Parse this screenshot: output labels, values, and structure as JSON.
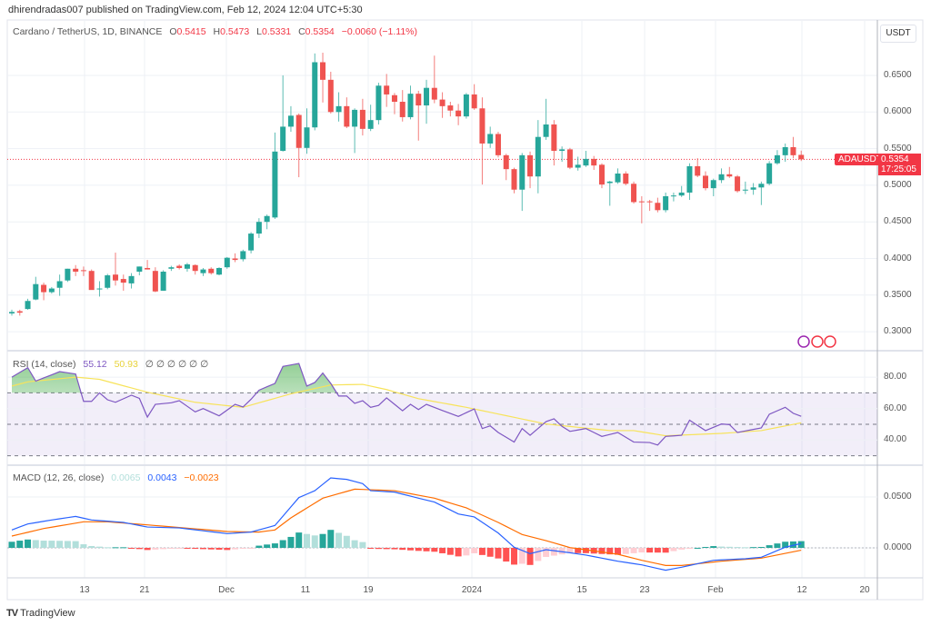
{
  "publisher": "dhirendradas007 published on TradingView.com, Feb 12, 2024 12:04 UTC+5:30",
  "symbol": "Cardano / TetherUS, 1D, BINANCE",
  "ohlc": {
    "o": "0.5415",
    "h": "0.5473",
    "l": "0.5331",
    "c": "0.5354",
    "chg": "−0.0060 (−1.11%)",
    "o_lbl": "O",
    "h_lbl": "H",
    "l_lbl": "L",
    "c_lbl": "C"
  },
  "currency": "USDT",
  "symbol_tag": "ADAUSDT",
  "last_price": "0.5354",
  "countdown": "17:25:05",
  "rsi_legend": {
    "name": "RSI (14, close)",
    "rsi": "55.12",
    "ma": "50.93",
    "extras": "∅ ∅ ∅ ∅ ∅ ∅"
  },
  "macd_legend": {
    "name": "MACD (12, 26, close)",
    "hist": "0.0065",
    "macd": "0.0043",
    "signal": "−0.0023"
  },
  "brand": "TradingView",
  "colors": {
    "up": "#26a69a",
    "down": "#ef5350",
    "rsi": "#7e57c2",
    "rsi_ma": "#f7e35a",
    "macd": "#2962ff",
    "signal": "#ff6d00"
  },
  "chart_data": [
    {
      "type": "candlestick",
      "title": "Cardano / TetherUS, 1D, BINANCE",
      "ylim": [
        0.28,
        0.7
      ],
      "y_ticks": [
        "0.6500",
        "0.6000",
        "0.5500",
        "0.5000",
        "0.4500",
        "0.4000",
        "0.3500",
        "0.3000"
      ],
      "x_ticks": [
        "13",
        "21",
        "Dec",
        "11",
        "19",
        "2024",
        "15",
        "23",
        "Feb",
        "12",
        "20"
      ],
      "ohlc": [
        [
          0.325,
          0.33,
          0.322,
          0.327
        ],
        [
          0.328,
          0.33,
          0.322,
          0.326
        ],
        [
          0.331,
          0.345,
          0.33,
          0.342
        ],
        [
          0.344,
          0.375,
          0.343,
          0.365
        ],
        [
          0.364,
          0.367,
          0.343,
          0.354
        ],
        [
          0.354,
          0.361,
          0.352,
          0.359
        ],
        [
          0.36,
          0.378,
          0.349,
          0.369
        ],
        [
          0.37,
          0.386,
          0.368,
          0.386
        ],
        [
          0.386,
          0.391,
          0.376,
          0.382
        ],
        [
          0.384,
          0.389,
          0.376,
          0.383
        ],
        [
          0.383,
          0.385,
          0.358,
          0.357
        ],
        [
          0.358,
          0.369,
          0.348,
          0.359
        ],
        [
          0.36,
          0.379,
          0.358,
          0.377
        ],
        [
          0.378,
          0.408,
          0.363,
          0.37
        ],
        [
          0.372,
          0.378,
          0.356,
          0.367
        ],
        [
          0.366,
          0.38,
          0.359,
          0.376
        ],
        [
          0.382,
          0.389,
          0.377,
          0.389
        ],
        [
          0.387,
          0.398,
          0.385,
          0.385
        ],
        [
          0.383,
          0.388,
          0.354,
          0.355
        ],
        [
          0.356,
          0.384,
          0.356,
          0.382
        ],
        [
          0.386,
          0.39,
          0.383,
          0.388
        ],
        [
          0.39,
          0.392,
          0.385,
          0.387
        ],
        [
          0.386,
          0.394,
          0.382,
          0.392
        ],
        [
          0.391,
          0.392,
          0.378,
          0.383
        ],
        [
          0.38,
          0.387,
          0.376,
          0.385
        ],
        [
          0.386,
          0.388,
          0.378,
          0.38
        ],
        [
          0.378,
          0.388,
          0.377,
          0.387
        ],
        [
          0.388,
          0.402,
          0.386,
          0.401
        ],
        [
          0.4,
          0.407,
          0.395,
          0.398
        ],
        [
          0.399,
          0.412,
          0.396,
          0.41
        ],
        [
          0.411,
          0.436,
          0.407,
          0.434
        ],
        [
          0.434,
          0.455,
          0.428,
          0.45
        ],
        [
          0.45,
          0.46,
          0.44,
          0.458
        ],
        [
          0.456,
          0.572,
          0.454,
          0.546
        ],
        [
          0.547,
          0.65,
          0.546,
          0.58
        ],
        [
          0.58,
          0.608,
          0.573,
          0.595
        ],
        [
          0.596,
          0.598,
          0.511,
          0.551
        ],
        [
          0.551,
          0.605,
          0.543,
          0.579
        ],
        [
          0.579,
          0.68,
          0.575,
          0.668
        ],
        [
          0.668,
          0.681,
          0.613,
          0.644
        ],
        [
          0.644,
          0.655,
          0.598,
          0.6
        ],
        [
          0.6,
          0.627,
          0.587,
          0.608
        ],
        [
          0.608,
          0.62,
          0.578,
          0.58
        ],
        [
          0.58,
          0.605,
          0.544,
          0.603
        ],
        [
          0.603,
          0.618,
          0.568,
          0.577
        ],
        [
          0.577,
          0.61,
          0.574,
          0.589
        ],
        [
          0.589,
          0.64,
          0.583,
          0.636
        ],
        [
          0.636,
          0.652,
          0.607,
          0.624
        ],
        [
          0.623,
          0.626,
          0.597,
          0.614
        ],
        [
          0.614,
          0.63,
          0.587,
          0.593
        ],
        [
          0.593,
          0.636,
          0.59,
          0.625
        ],
        [
          0.625,
          0.629,
          0.561,
          0.609
        ],
        [
          0.609,
          0.644,
          0.584,
          0.633
        ],
        [
          0.633,
          0.677,
          0.612,
          0.617
        ],
        [
          0.617,
          0.627,
          0.592,
          0.608
        ],
        [
          0.609,
          0.614,
          0.594,
          0.602
        ],
        [
          0.602,
          0.611,
          0.582,
          0.594
        ],
        [
          0.594,
          0.626,
          0.591,
          0.624
        ],
        [
          0.624,
          0.638,
          0.603,
          0.605
        ],
        [
          0.605,
          0.62,
          0.501,
          0.557
        ],
        [
          0.557,
          0.58,
          0.551,
          0.57
        ],
        [
          0.57,
          0.573,
          0.538,
          0.541
        ],
        [
          0.541,
          0.543,
          0.507,
          0.522
        ],
        [
          0.522,
          0.524,
          0.489,
          0.494
        ],
        [
          0.494,
          0.544,
          0.465,
          0.541
        ],
        [
          0.541,
          0.546,
          0.496,
          0.512
        ],
        [
          0.512,
          0.589,
          0.489,
          0.566
        ],
        [
          0.566,
          0.618,
          0.562,
          0.583
        ],
        [
          0.583,
          0.589,
          0.527,
          0.547
        ],
        [
          0.547,
          0.553,
          0.532,
          0.549
        ],
        [
          0.549,
          0.551,
          0.522,
          0.524
        ],
        [
          0.524,
          0.539,
          0.52,
          0.528
        ],
        [
          0.527,
          0.547,
          0.525,
          0.536
        ],
        [
          0.536,
          0.54,
          0.521,
          0.527
        ],
        [
          0.528,
          0.53,
          0.496,
          0.501
        ],
        [
          0.503,
          0.506,
          0.472,
          0.505
        ],
        [
          0.504,
          0.523,
          0.502,
          0.516
        ],
        [
          0.516,
          0.519,
          0.5,
          0.502
        ],
        [
          0.502,
          0.505,
          0.475,
          0.477
        ],
        [
          0.478,
          0.485,
          0.448,
          0.477
        ],
        [
          0.478,
          0.48,
          0.465,
          0.477
        ],
        [
          0.476,
          0.483,
          0.463,
          0.466
        ],
        [
          0.466,
          0.49,
          0.463,
          0.485
        ],
        [
          0.485,
          0.49,
          0.478,
          0.486
        ],
        [
          0.486,
          0.499,
          0.484,
          0.49
        ],
        [
          0.49,
          0.53,
          0.48,
          0.526
        ],
        [
          0.526,
          0.537,
          0.511,
          0.513
        ],
        [
          0.513,
          0.519,
          0.493,
          0.496
        ],
        [
          0.496,
          0.509,
          0.485,
          0.507
        ],
        [
          0.507,
          0.523,
          0.503,
          0.515
        ],
        [
          0.515,
          0.525,
          0.51,
          0.512
        ],
        [
          0.512,
          0.514,
          0.49,
          0.492
        ],
        [
          0.493,
          0.505,
          0.488,
          0.494
        ],
        [
          0.494,
          0.503,
          0.487,
          0.497
        ],
        [
          0.497,
          0.505,
          0.473,
          0.502
        ],
        [
          0.502,
          0.533,
          0.5,
          0.53
        ],
        [
          0.53,
          0.548,
          0.528,
          0.541
        ],
        [
          0.541,
          0.557,
          0.532,
          0.552
        ],
        [
          0.552,
          0.566,
          0.537,
          0.541
        ],
        [
          0.5415,
          0.5473,
          0.5331,
          0.5354
        ]
      ]
    },
    {
      "type": "line",
      "title": "RSI (14, close)",
      "ylim": [
        23,
        92
      ],
      "y_ticks": [
        "80.00",
        "60.00",
        "40.00"
      ],
      "bands": {
        "upper": 70,
        "middle": 50,
        "lower": 30
      },
      "rsi": [
        [
          0,
          80
        ],
        [
          2,
          86
        ],
        [
          3,
          77.5
        ],
        [
          6,
          83.5
        ],
        [
          8,
          82
        ],
        [
          9,
          64.6
        ],
        [
          10,
          64.6
        ],
        [
          11,
          70
        ],
        [
          12,
          65.6
        ],
        [
          13,
          64
        ],
        [
          15,
          68.5
        ],
        [
          16,
          66.5
        ],
        [
          17,
          54.6
        ],
        [
          18,
          62.7
        ],
        [
          20,
          63.7
        ],
        [
          21,
          65
        ],
        [
          23,
          57.9
        ],
        [
          24,
          60
        ],
        [
          26,
          55.4
        ],
        [
          28,
          62.7
        ],
        [
          29,
          61
        ],
        [
          30,
          65.9
        ],
        [
          31,
          71.7
        ],
        [
          33,
          76
        ],
        [
          34,
          86.8
        ],
        [
          36,
          88.7
        ],
        [
          37,
          74.3
        ],
        [
          38,
          76.6
        ],
        [
          39,
          82.6
        ],
        [
          40,
          76
        ],
        [
          41,
          68
        ],
        [
          42,
          68
        ],
        [
          43,
          63.3
        ],
        [
          44,
          65
        ],
        [
          45,
          60.8
        ],
        [
          46,
          62
        ],
        [
          47,
          66.8
        ],
        [
          49,
          58.6
        ],
        [
          50,
          62.7
        ],
        [
          51,
          59.4
        ],
        [
          52,
          62.7
        ],
        [
          54,
          58.8
        ],
        [
          56,
          55
        ],
        [
          58,
          59.8
        ],
        [
          59,
          47.3
        ],
        [
          60,
          49
        ],
        [
          61,
          44.8
        ],
        [
          63,
          38.7
        ],
        [
          64,
          47.3
        ],
        [
          65,
          43
        ],
        [
          67,
          51.7
        ],
        [
          68,
          53.5
        ],
        [
          69,
          48.7
        ],
        [
          70,
          45.5
        ],
        [
          72,
          47.3
        ],
        [
          74,
          42.3
        ],
        [
          76,
          44.8
        ],
        [
          78,
          38.7
        ],
        [
          80,
          38.4
        ],
        [
          81,
          36.8
        ],
        [
          82,
          42.3
        ],
        [
          84,
          43
        ],
        [
          85,
          52.6
        ],
        [
          87,
          46
        ],
        [
          89,
          50.2
        ],
        [
          90,
          49.8
        ],
        [
          91,
          44.8
        ],
        [
          94,
          47.7
        ],
        [
          95,
          56.4
        ],
        [
          97,
          60.8
        ],
        [
          98,
          57
        ],
        [
          99,
          55.12
        ]
      ],
      "rsi_ma": [
        [
          0,
          74.3
        ],
        [
          2,
          77
        ],
        [
          8,
          80
        ],
        [
          11,
          78.6
        ],
        [
          17,
          70.4
        ],
        [
          23,
          64
        ],
        [
          29,
          60.8
        ],
        [
          35,
          69.4
        ],
        [
          40,
          75
        ],
        [
          44,
          75.4
        ],
        [
          47,
          72.1
        ],
        [
          51,
          66.3
        ],
        [
          57,
          60.8
        ],
        [
          67,
          50.2
        ],
        [
          75,
          46
        ],
        [
          78,
          46
        ],
        [
          82,
          42.7
        ],
        [
          89,
          44.2
        ],
        [
          94,
          46
        ],
        [
          99,
          50.93
        ]
      ]
    },
    {
      "type": "line",
      "title": "MACD (12, 26, close)",
      "ylim": [
        -0.035,
        0.08
      ],
      "y_ticks": [
        "0.0500",
        "0.0000"
      ],
      "macd": [
        [
          0,
          0.0176
        ],
        [
          2,
          0.0235
        ],
        [
          5,
          0.0274
        ],
        [
          8,
          0.0309
        ],
        [
          10,
          0.0274
        ],
        [
          14,
          0.025
        ],
        [
          17,
          0.0205
        ],
        [
          21,
          0.0196
        ],
        [
          27,
          0.014
        ],
        [
          30,
          0.0155
        ],
        [
          33,
          0.022
        ],
        [
          36,
          0.0494
        ],
        [
          38,
          0.0562
        ],
        [
          40,
          0.0687
        ],
        [
          42,
          0.0673
        ],
        [
          44,
          0.0631
        ],
        [
          45,
          0.0562
        ],
        [
          48,
          0.0548
        ],
        [
          51,
          0.0488
        ],
        [
          53,
          0.045
        ],
        [
          56,
          0.0333
        ],
        [
          58,
          0.0304
        ],
        [
          61,
          0.0146
        ],
        [
          63,
          0.0006
        ],
        [
          65,
          -0.0057
        ],
        [
          67,
          -0.0018
        ],
        [
          70,
          -0.0048
        ],
        [
          72,
          -0.0071
        ],
        [
          76,
          -0.0131
        ],
        [
          79,
          -0.0167
        ],
        [
          82,
          -0.022
        ],
        [
          84,
          -0.019
        ],
        [
          88,
          -0.0122
        ],
        [
          92,
          -0.0107
        ],
        [
          94,
          -0.0092
        ],
        [
          97,
          0.0006
        ],
        [
          99,
          0.0043
        ]
      ],
      "signal": [
        [
          0,
          0.0116
        ],
        [
          4,
          0.019
        ],
        [
          9,
          0.0256
        ],
        [
          12,
          0.0256
        ],
        [
          17,
          0.0226
        ],
        [
          27,
          0.0161
        ],
        [
          31,
          0.0155
        ],
        [
          33,
          0.0176
        ],
        [
          35,
          0.0295
        ],
        [
          39,
          0.0488
        ],
        [
          43,
          0.0577
        ],
        [
          48,
          0.0562
        ],
        [
          53,
          0.0488
        ],
        [
          57,
          0.0393
        ],
        [
          61,
          0.025
        ],
        [
          64,
          0.0131
        ],
        [
          67,
          0.0071
        ],
        [
          70,
          0.0003
        ],
        [
          76,
          -0.0063
        ],
        [
          79,
          -0.0122
        ],
        [
          82,
          -0.0173
        ],
        [
          84,
          -0.0173
        ],
        [
          89,
          -0.0131
        ],
        [
          94,
          -0.0101
        ],
        [
          99,
          -0.0023
        ]
      ]
    }
  ]
}
